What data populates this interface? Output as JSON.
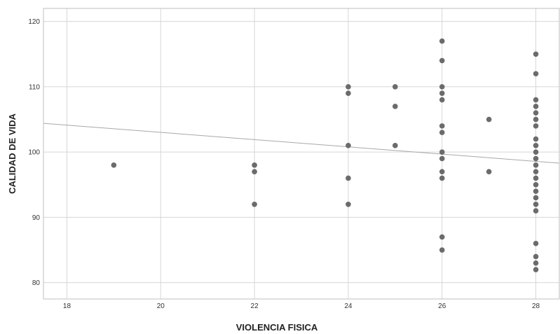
{
  "colors": {
    "background": "#ffffff",
    "plot_border": "#bfbfbf",
    "grid": "#d6d6d6",
    "point": "#6b6b6b",
    "fit_line": "#a8a8a8",
    "axis_text": "#333333"
  },
  "chart_data": {
    "type": "scatter",
    "title": "",
    "xlabel": "VIOLENCIA FISICA",
    "ylabel": "CALIDAD DE VIDA",
    "xlim": [
      17.5,
      28.5
    ],
    "ylim": [
      77.5,
      122
    ],
    "x_ticks": [
      18,
      20,
      22,
      24,
      26,
      28
    ],
    "y_ticks": [
      80,
      90,
      100,
      110,
      120
    ],
    "grid": true,
    "legend": "none",
    "points": [
      {
        "x": 19,
        "y": 98
      },
      {
        "x": 22,
        "y": 98
      },
      {
        "x": 22,
        "y": 97
      },
      {
        "x": 22,
        "y": 92
      },
      {
        "x": 24,
        "y": 110
      },
      {
        "x": 24,
        "y": 109
      },
      {
        "x": 24,
        "y": 101
      },
      {
        "x": 24,
        "y": 96
      },
      {
        "x": 24,
        "y": 92
      },
      {
        "x": 25,
        "y": 110
      },
      {
        "x": 25,
        "y": 107
      },
      {
        "x": 25,
        "y": 101
      },
      {
        "x": 26,
        "y": 117
      },
      {
        "x": 26,
        "y": 114
      },
      {
        "x": 26,
        "y": 110
      },
      {
        "x": 26,
        "y": 109
      },
      {
        "x": 26,
        "y": 108
      },
      {
        "x": 26,
        "y": 104
      },
      {
        "x": 26,
        "y": 103
      },
      {
        "x": 26,
        "y": 100
      },
      {
        "x": 26,
        "y": 99
      },
      {
        "x": 26,
        "y": 97
      },
      {
        "x": 26,
        "y": 96
      },
      {
        "x": 26,
        "y": 87
      },
      {
        "x": 26,
        "y": 85
      },
      {
        "x": 27,
        "y": 105
      },
      {
        "x": 27,
        "y": 97
      },
      {
        "x": 28,
        "y": 115
      },
      {
        "x": 28,
        "y": 112
      },
      {
        "x": 28,
        "y": 108
      },
      {
        "x": 28,
        "y": 107
      },
      {
        "x": 28,
        "y": 106
      },
      {
        "x": 28,
        "y": 105
      },
      {
        "x": 28,
        "y": 104
      },
      {
        "x": 28,
        "y": 102
      },
      {
        "x": 28,
        "y": 101
      },
      {
        "x": 28,
        "y": 100
      },
      {
        "x": 28,
        "y": 99
      },
      {
        "x": 28,
        "y": 98
      },
      {
        "x": 28,
        "y": 97
      },
      {
        "x": 28,
        "y": 96
      },
      {
        "x": 28,
        "y": 95
      },
      {
        "x": 28,
        "y": 94
      },
      {
        "x": 28,
        "y": 93
      },
      {
        "x": 28,
        "y": 92
      },
      {
        "x": 28,
        "y": 91
      },
      {
        "x": 28,
        "y": 86
      },
      {
        "x": 28,
        "y": 84
      },
      {
        "x": 28,
        "y": 83
      },
      {
        "x": 28,
        "y": 82
      }
    ],
    "fit_line": {
      "x": [
        17.5,
        28.5
      ],
      "y": [
        104.4,
        98.3
      ]
    }
  }
}
